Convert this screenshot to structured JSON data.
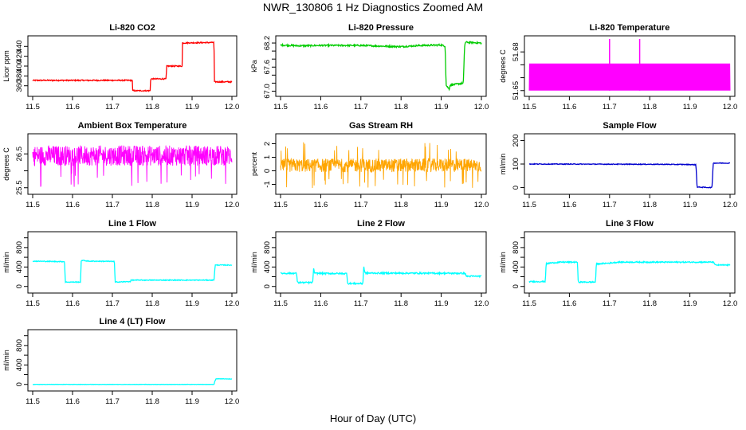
{
  "title": "NWR_130806  1 Hz Diagnostics Zoomed AM",
  "xlabel": "Hour of Day (UTC)",
  "colors": {
    "co2": "#ff0000",
    "pressure": "#00cc00",
    "licor_temp": "#ff00ff",
    "box_temp": "#ff00ff",
    "rh": "#ffa500",
    "sample_flow": "#0000cd",
    "line_flow": "#00ffff"
  },
  "chart_data": [
    {
      "type": "line",
      "title": "Li-820 CO2",
      "ylabel": "Licor ppm",
      "xlim": [
        11.5,
        12.0
      ],
      "xticks": [
        "11.5",
        "11.6",
        "11.7",
        "11.8",
        "11.9",
        "12.0"
      ],
      "ylim": [
        345,
        455
      ],
      "yticks": [
        360,
        380,
        400,
        420,
        440
      ],
      "series": [
        {
          "color_key": "co2",
          "noise": 1.2,
          "points": [
            [
              11.5,
              371
            ],
            [
              11.75,
              371
            ],
            [
              11.751,
              350
            ],
            [
              11.795,
              350
            ],
            [
              11.796,
              374
            ],
            [
              11.835,
              374
            ],
            [
              11.836,
              400
            ],
            [
              11.875,
              400
            ],
            [
              11.876,
              447
            ],
            [
              11.955,
              448
            ],
            [
              11.956,
              368
            ],
            [
              12.0,
              368
            ]
          ]
        }
      ]
    },
    {
      "type": "line",
      "title": "Li-820 Pressure",
      "ylabel": "kPa",
      "xlim": [
        11.5,
        12.0
      ],
      "xticks": [
        "11.5",
        "11.6",
        "11.7",
        "11.8",
        "11.9",
        "12.0"
      ],
      "ylim": [
        66.95,
        68.3
      ],
      "yticks": [
        "67.0",
        "67.2",
        "67.4",
        "67.6",
        "67.8",
        "68.0",
        "68.2"
      ],
      "ytick_labels_shown": [
        "67.0",
        "67.6",
        "68.2"
      ],
      "series": [
        {
          "color_key": "pressure",
          "noise": 0.02,
          "points": [
            [
              11.5,
              68.15
            ],
            [
              11.55,
              68.13
            ],
            [
              11.6,
              68.14
            ],
            [
              11.7,
              68.14
            ],
            [
              11.76,
              68.12
            ],
            [
              11.8,
              68.11
            ],
            [
              11.85,
              68.14
            ],
            [
              11.9,
              68.15
            ],
            [
              11.91,
              68.12
            ],
            [
              11.912,
              67.15
            ],
            [
              11.92,
              67.05
            ],
            [
              11.922,
              67.15
            ],
            [
              11.955,
              67.2
            ],
            [
              11.958,
              68.1
            ],
            [
              11.96,
              68.22
            ],
            [
              12.0,
              68.2
            ]
          ]
        }
      ]
    },
    {
      "type": "line",
      "title": "Li-820 Temperature",
      "ylabel": "degrees C",
      "xlim": [
        11.5,
        12.0
      ],
      "xticks": [
        "11.5",
        "11.6",
        "11.7",
        "11.8",
        "11.9",
        "12.0"
      ],
      "ylim": [
        51.648,
        51.69
      ],
      "yticks": [
        "51.65",
        "51.66",
        "51.67",
        "51.68"
      ],
      "ytick_labels_shown": [
        "51.65",
        "51.68"
      ],
      "series": [
        {
          "color_key": "licor_temp",
          "style": "quantized_band",
          "band": [
            51.65,
            51.671
          ],
          "spikes": [
            [
              11.7,
              51.69
            ],
            [
              11.775,
              51.69
            ]
          ]
        }
      ]
    },
    {
      "type": "line",
      "title": "Ambient Box Temperature",
      "ylabel": "degrees C",
      "xlim": [
        11.5,
        12.0
      ],
      "xticks": [
        "11.5",
        "11.6",
        "11.7",
        "11.8",
        "11.9",
        "12.0"
      ],
      "ylim": [
        25.4,
        27.0
      ],
      "yticks": [
        "25.5",
        "26.0",
        "26.5"
      ],
      "ytick_labels_shown": [
        "25.5",
        "26.5"
      ],
      "series": [
        {
          "color_key": "box_temp",
          "style": "noise_band",
          "center": 26.45,
          "spread": 0.3,
          "dips_to": 25.5
        }
      ]
    },
    {
      "type": "line",
      "title": "Gas Stream RH",
      "ylabel": "percent",
      "xlim": [
        11.5,
        12.0
      ],
      "xticks": [
        "11.5",
        "11.6",
        "11.7",
        "11.8",
        "11.9",
        "12.0"
      ],
      "ylim": [
        -1.5,
        2.5
      ],
      "yticks": [
        -1,
        0,
        1,
        2
      ],
      "series": [
        {
          "color_key": "rh",
          "style": "noise_band",
          "center": 0.4,
          "spread": 0.5,
          "dips_to": -1.3,
          "peaks_to": 2.2
        }
      ]
    },
    {
      "type": "line",
      "title": "Sample Flow",
      "ylabel": "ml/min",
      "xlim": [
        11.5,
        12.0
      ],
      "xticks": [
        "11.5",
        "11.6",
        "11.7",
        "11.8",
        "11.9",
        "12.0"
      ],
      "ylim": [
        -15,
        215
      ],
      "yticks": [
        0,
        100,
        200
      ],
      "series": [
        {
          "color_key": "sample_flow",
          "noise": 1.5,
          "points": [
            [
              11.5,
              100
            ],
            [
              11.8,
              99
            ],
            [
              11.9,
              98
            ],
            [
              11.915,
              97
            ],
            [
              11.918,
              2
            ],
            [
              11.955,
              0
            ],
            [
              11.958,
              104
            ],
            [
              12.0,
              104
            ]
          ]
        }
      ]
    },
    {
      "type": "line",
      "title": "Line 1 Flow",
      "ylabel": "ml/min",
      "xlim": [
        11.5,
        12.0
      ],
      "xticks": [
        "11.5",
        "11.6",
        "11.7",
        "11.8",
        "11.9",
        "12.0"
      ],
      "ylim": [
        -70,
        1060
      ],
      "yticks": [
        0,
        200,
        400,
        600,
        800,
        1000
      ],
      "ytick_labels_shown": [
        "0",
        "400",
        "800"
      ],
      "series": [
        {
          "color_key": "line_flow",
          "noise": 8,
          "points": [
            [
              11.5,
              520
            ],
            [
              11.58,
              510
            ],
            [
              11.582,
              90
            ],
            [
              11.62,
              90
            ],
            [
              11.622,
              540
            ],
            [
              11.64,
              520
            ],
            [
              11.705,
              515
            ],
            [
              11.707,
              90
            ],
            [
              11.745,
              100
            ],
            [
              11.747,
              130
            ],
            [
              11.955,
              130
            ],
            [
              11.958,
              440
            ],
            [
              12.0,
              440
            ]
          ]
        }
      ]
    },
    {
      "type": "line",
      "title": "Line 2 Flow",
      "ylabel": "ml/min",
      "xlim": [
        11.5,
        12.0
      ],
      "xticks": [
        "11.5",
        "11.6",
        "11.7",
        "11.8",
        "11.9",
        "12.0"
      ],
      "ylim": [
        -70,
        1060
      ],
      "yticks": [
        0,
        200,
        400,
        600,
        800,
        1000
      ],
      "ytick_labels_shown": [
        "0",
        "400",
        "800"
      ],
      "series": [
        {
          "color_key": "line_flow",
          "noise": 15,
          "points": [
            [
              11.5,
              270
            ],
            [
              11.54,
              270
            ],
            [
              11.542,
              80
            ],
            [
              11.58,
              80
            ],
            [
              11.582,
              370
            ],
            [
              11.585,
              270
            ],
            [
              11.665,
              265
            ],
            [
              11.667,
              60
            ],
            [
              11.705,
              60
            ],
            [
              11.707,
              420
            ],
            [
              11.71,
              275
            ],
            [
              11.96,
              270
            ],
            [
              11.962,
              210
            ],
            [
              12.0,
              210
            ]
          ]
        }
      ]
    },
    {
      "type": "line",
      "title": "Line 3 Flow",
      "ylabel": "ml/min",
      "xlim": [
        11.5,
        12.0
      ],
      "xticks": [
        "11.5",
        "11.6",
        "11.7",
        "11.8",
        "11.9",
        "12.0"
      ],
      "ylim": [
        -70,
        1060
      ],
      "yticks": [
        0,
        200,
        400,
        600,
        800,
        1000
      ],
      "ytick_labels_shown": [
        "0",
        "400",
        "800"
      ],
      "series": [
        {
          "color_key": "line_flow",
          "noise": 12,
          "points": [
            [
              11.5,
              100
            ],
            [
              11.54,
              100
            ],
            [
              11.542,
              460
            ],
            [
              11.55,
              480
            ],
            [
              11.58,
              500
            ],
            [
              11.62,
              500
            ],
            [
              11.622,
              90
            ],
            [
              11.665,
              90
            ],
            [
              11.667,
              460
            ],
            [
              11.68,
              470
            ],
            [
              11.7,
              480
            ],
            [
              11.72,
              500
            ],
            [
              11.96,
              500
            ],
            [
              11.962,
              440
            ],
            [
              12.0,
              440
            ]
          ]
        }
      ]
    },
    {
      "type": "line",
      "title": "Line 4 (LT) Flow",
      "ylabel": "ml/min",
      "xlim": [
        11.5,
        12.0
      ],
      "xticks": [
        "11.5",
        "11.6",
        "11.7",
        "11.8",
        "11.9",
        "12.0"
      ],
      "ylim": [
        -70,
        1060
      ],
      "yticks": [
        0,
        200,
        400,
        600,
        800,
        1000
      ],
      "ytick_labels_shown": [
        "0",
        "400",
        "800"
      ],
      "series": [
        {
          "color_key": "line_flow",
          "noise": 3,
          "points": [
            [
              11.5,
              0
            ],
            [
              11.955,
              0
            ],
            [
              11.957,
              60
            ],
            [
              11.96,
              115
            ],
            [
              12.0,
              110
            ]
          ]
        }
      ]
    }
  ]
}
